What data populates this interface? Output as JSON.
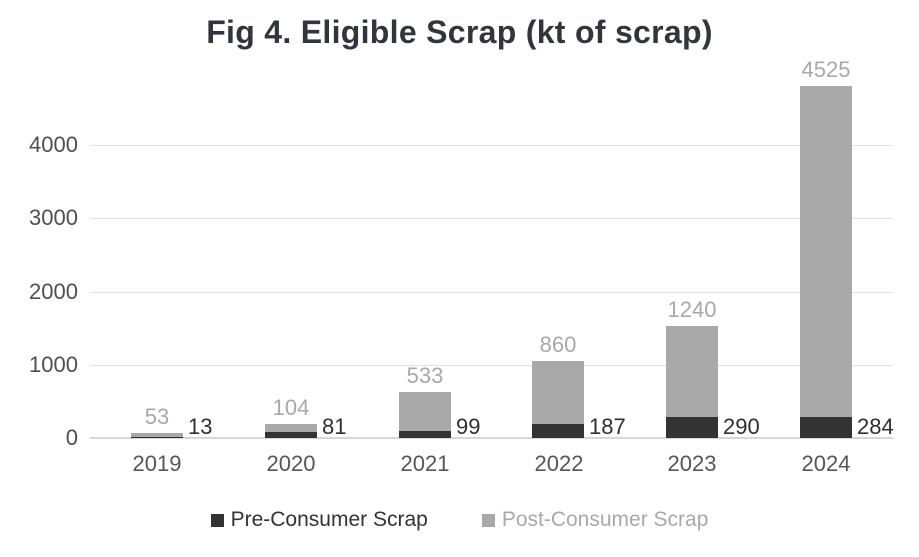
{
  "chart_data": {
    "type": "bar",
    "stacked": true,
    "title": "Fig 4. Eligible Scrap (kt of scrap)",
    "categories": [
      "2019",
      "2020",
      "2021",
      "2022",
      "2023",
      "2024"
    ],
    "series": [
      {
        "name": "Pre-Consumer Scrap",
        "color": "#333333",
        "label_color": "#2f2f2f",
        "values": [
          13,
          81,
          99,
          187,
          290,
          284
        ]
      },
      {
        "name": "Post-Consumer Scrap",
        "color": "#a9a9a9",
        "label_color": "#a8a8a8",
        "values": [
          53,
          104,
          533,
          860,
          1240,
          4525
        ]
      }
    ],
    "y_ticks": [
      0,
      1000,
      2000,
      3000,
      4000
    ],
    "ylim": [
      0,
      4800
    ],
    "xlabel": "",
    "ylabel": "",
    "grid": true,
    "legend_position": "bottom"
  },
  "colors": {
    "title": "#32353d",
    "axis_label": "#4f4f4f",
    "category_label": "#565656",
    "gridline": "#e2e2e2",
    "axis_line": "#d7d7d7",
    "background": "#ffffff"
  }
}
